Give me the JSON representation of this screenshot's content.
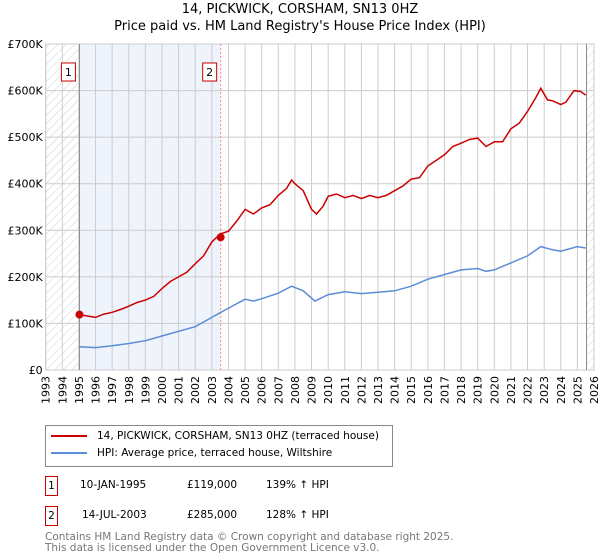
{
  "title_line1": "14, PICKWICK, CORSHAM, SN13 0HZ",
  "title_line2": "Price paid vs. HM Land Registry's House Price Index (HPI)",
  "colors": {
    "property": "#cc0000",
    "hpi": "#5b8dd6",
    "shade": "#eef3fc"
  },
  "chart_data": {
    "type": "line",
    "title": "14, PICKWICK, CORSHAM, SN13 0HZ — Price paid vs. HM Land Registry's House Price Index (HPI)",
    "xlim": [
      1993,
      2026
    ],
    "ylim": [
      0,
      700000
    ],
    "x_ticks": [
      "1993",
      "1994",
      "1995",
      "1996",
      "1997",
      "1998",
      "1999",
      "2000",
      "2001",
      "2002",
      "2003",
      "2004",
      "2005",
      "2006",
      "2007",
      "2008",
      "2009",
      "2010",
      "2011",
      "2012",
      "2013",
      "2014",
      "2015",
      "2016",
      "2017",
      "2018",
      "2019",
      "2020",
      "2021",
      "2022",
      "2023",
      "2024",
      "2025",
      "2026"
    ],
    "y_ticks": [
      {
        "v": 0,
        "label": "£0"
      },
      {
        "v": 100000,
        "label": "£100K"
      },
      {
        "v": 200000,
        "label": "£200K"
      },
      {
        "v": 300000,
        "label": "£300K"
      },
      {
        "v": 400000,
        "label": "£400K"
      },
      {
        "v": 500000,
        "label": "£500K"
      },
      {
        "v": 600000,
        "label": "£600K"
      },
      {
        "v": 700000,
        "label": "£700K"
      }
    ],
    "grid": true,
    "series": [
      {
        "name": "14, PICKWICK, CORSHAM, SN13 0HZ (terraced house)",
        "color": "#cc0000",
        "x": [
          1995,
          1995.5,
          1996,
          1996.5,
          1997,
          1997.5,
          1998,
          1998.5,
          1999,
          1999.5,
          2000,
          2000.5,
          2001,
          2001.5,
          2002,
          2002.5,
          2003,
          2003.5,
          2004,
          2004.5,
          2005,
          2005.5,
          2006,
          2006.5,
          2007,
          2007.5,
          2007.8,
          2008,
          2008.5,
          2009,
          2009.3,
          2009.7,
          2010,
          2010.5,
          2011,
          2011.5,
          2012,
          2012.5,
          2013,
          2013.5,
          2014,
          2014.5,
          2015,
          2015.5,
          2016,
          2016.5,
          2017,
          2017.5,
          2018,
          2018.5,
          2019,
          2019.5,
          2020,
          2020.5,
          2021,
          2021.5,
          2022,
          2022.5,
          2022.8,
          2023.2,
          2023.5,
          2024,
          2024.3,
          2024.8,
          2025.2,
          2025.5
        ],
        "y": [
          119000,
          116000,
          113000,
          120000,
          124000,
          130000,
          137000,
          145000,
          150000,
          158000,
          175000,
          190000,
          200000,
          210000,
          228000,
          245000,
          275000,
          292000,
          298000,
          320000,
          345000,
          335000,
          348000,
          355000,
          375000,
          390000,
          408000,
          400000,
          385000,
          345000,
          335000,
          352000,
          373000,
          378000,
          370000,
          375000,
          368000,
          375000,
          370000,
          375000,
          385000,
          395000,
          410000,
          413000,
          438000,
          450000,
          462000,
          480000,
          487000,
          495000,
          498000,
          480000,
          490000,
          490000,
          518000,
          530000,
          555000,
          585000,
          605000,
          580000,
          578000,
          570000,
          575000,
          600000,
          598000,
          590000
        ]
      },
      {
        "name": "HPI: Average price, terraced house, Wiltshire",
        "color": "#5b8dd6",
        "x": [
          1995,
          1996,
          1997,
          1998,
          1999,
          2000,
          2001,
          2002,
          2003,
          2003.5,
          2004,
          2005,
          2005.5,
          2006,
          2007,
          2007.8,
          2008.5,
          2009.2,
          2010,
          2011,
          2012,
          2013,
          2014,
          2015,
          2016,
          2017,
          2018,
          2019,
          2019.5,
          2020,
          2021,
          2022,
          2022.8,
          2023.5,
          2024,
          2025,
          2025.5
        ],
        "y": [
          50000,
          48000,
          52000,
          57000,
          63000,
          73000,
          83000,
          93000,
          113000,
          123000,
          133000,
          152000,
          148000,
          153000,
          165000,
          180000,
          170000,
          148000,
          162000,
          168000,
          164000,
          167000,
          170000,
          180000,
          195000,
          205000,
          215000,
          218000,
          212000,
          215000,
          230000,
          245000,
          265000,
          258000,
          255000,
          265000,
          262000
        ]
      }
    ],
    "sales": [
      {
        "label": "1",
        "x": 1995.03,
        "y": 119000
      },
      {
        "label": "2",
        "x": 2003.53,
        "y": 285000
      }
    ]
  },
  "legend": {
    "property": "14, PICKWICK, CORSHAM, SN13 0HZ (terraced house)",
    "hpi": "HPI: Average price, terraced house, Wiltshire"
  },
  "transactions": [
    {
      "num": "1",
      "date": "10-JAN-1995",
      "price": "£119,000",
      "hpi": "139% ↑ HPI"
    },
    {
      "num": "2",
      "date": "14-JUL-2003",
      "price": "£285,000",
      "hpi": "128% ↑ HPI"
    }
  ],
  "footer_line1": "Contains HM Land Registry data © Crown copyright and database right 2025.",
  "footer_line2": "This data is licensed under the Open Government Licence v3.0."
}
